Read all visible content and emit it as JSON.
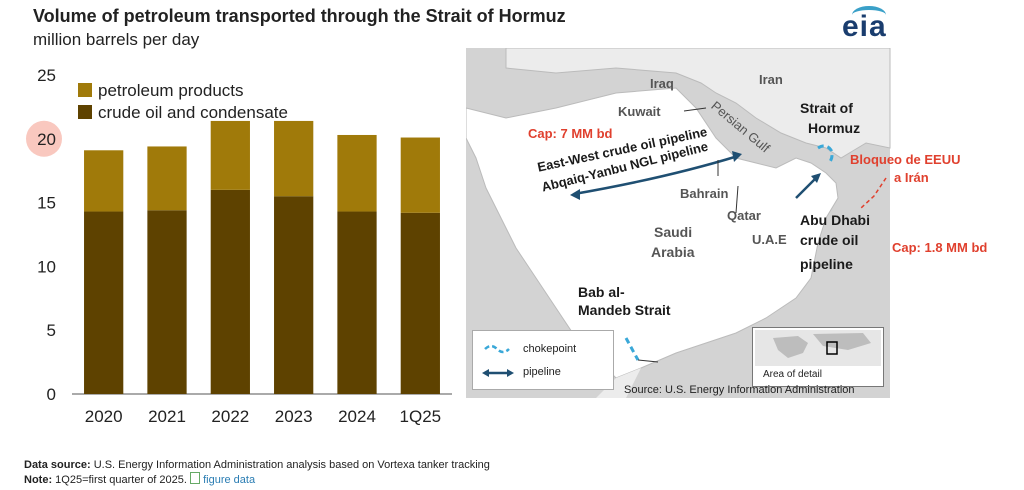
{
  "header": {
    "title": "Volume of petroleum transported through the Strait of Hormuz",
    "subtitle": "million barrels per day",
    "logo": "eia"
  },
  "chart_data": {
    "type": "bar",
    "stacked": true,
    "categories": [
      "2020",
      "2021",
      "2022",
      "2023",
      "2024",
      "1Q25"
    ],
    "series": [
      {
        "name": "crude oil and condensate",
        "values": [
          14.3,
          14.4,
          16.0,
          15.5,
          14.3,
          14.2
        ],
        "color": "#5e4200"
      },
      {
        "name": "petroleum products",
        "values": [
          4.8,
          5.0,
          5.4,
          5.9,
          6.0,
          5.9
        ],
        "color": "#a07a0a"
      }
    ],
    "ylim": [
      0,
      25
    ],
    "yticks": [
      "0",
      "5",
      "10",
      "15",
      "20",
      "25"
    ],
    "legend_position": "top-left",
    "highlight_tick": "20",
    "highlight_color": "#f6b0a4"
  },
  "map": {
    "labels": {
      "iraq": "Iraq",
      "iran": "Iran",
      "kuwait": "Kuwait",
      "persian_gulf": "Persian Gulf",
      "bahrain": "Bahrain",
      "qatar": "Qatar",
      "saudi_arabia_1": "Saudi",
      "saudi_arabia_2": "Arabia",
      "uae": "U.A.E",
      "strait_hormuz_1": "Strait of",
      "strait_hormuz_2": "Hormuz",
      "ew_pipeline": "East-West crude oil pipeline",
      "ngl_pipeline": "Abqaiq-Yanbu NGL pipeline",
      "abu_dhabi_1": "Abu Dhabi",
      "abu_dhabi_2": "crude oil",
      "abu_dhabi_3": "pipeline",
      "bab_1": "Bab al-",
      "bab_2": "Mandeb Strait",
      "cap_7": "Cap: 7 MM bd",
      "cap_18": "Cap: 1.8 MM bd",
      "bloqueo_1": "Bloqueo de EEUU",
      "bloqueo_2": "a Irán",
      "legend_chokepoint": "chokepoint",
      "legend_pipeline": "pipeline",
      "inset_label": "Area of detail",
      "source": "Source: U.S. Energy Information Administration"
    },
    "colors": {
      "water": "#d3d3d3",
      "land": "#ffffff",
      "chokepoint": "#3aa8d8",
      "pipeline": "#1f4f72",
      "annotation": "#e0402e"
    }
  },
  "notes": {
    "data_source_label": "Data source:",
    "data_source_text": "U.S. Energy Information Administration analysis based on Vortexa tanker tracking",
    "note_label": "Note:",
    "note_text": "1Q25=first quarter of 2025.",
    "figure_data_link": "figure data"
  }
}
